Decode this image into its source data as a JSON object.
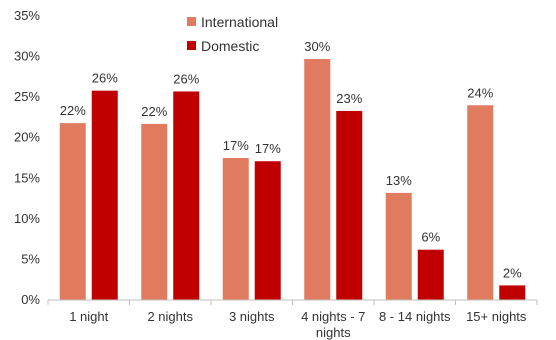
{
  "chart_data": {
    "type": "bar",
    "categories": [
      "1 night",
      "2 nights",
      "3 nights",
      "4 nights - 7 nights",
      "8 - 14 nights",
      "15+ nights"
    ],
    "series": [
      {
        "name": "International",
        "values": [
          22,
          22,
          17,
          30,
          13,
          24
        ],
        "labels": [
          "22%",
          "22%",
          "17%",
          "30%",
          "13%",
          "24%"
        ],
        "color": "#E07B60"
      },
      {
        "name": "Domestic",
        "values": [
          26,
          26,
          17,
          23,
          6,
          2
        ],
        "labels": [
          "26%",
          "26%",
          "17%",
          "23%",
          "6%",
          "2%"
        ],
        "color": "#C00000"
      }
    ],
    "exact_values": {
      "International": [
        21.8,
        21.7,
        17.5,
        29.7,
        13.2,
        24.0
      ],
      "Domestic": [
        25.8,
        25.7,
        17.1,
        23.3,
        6.2,
        1.8
      ]
    },
    "ylim": [
      0,
      35
    ],
    "yticks": [
      "0%",
      "5%",
      "10%",
      "15%",
      "20%",
      "25%",
      "30%",
      "35%"
    ],
    "legend_position": "top-center",
    "grid": false,
    "title": "",
    "xlabel": "",
    "ylabel": ""
  }
}
